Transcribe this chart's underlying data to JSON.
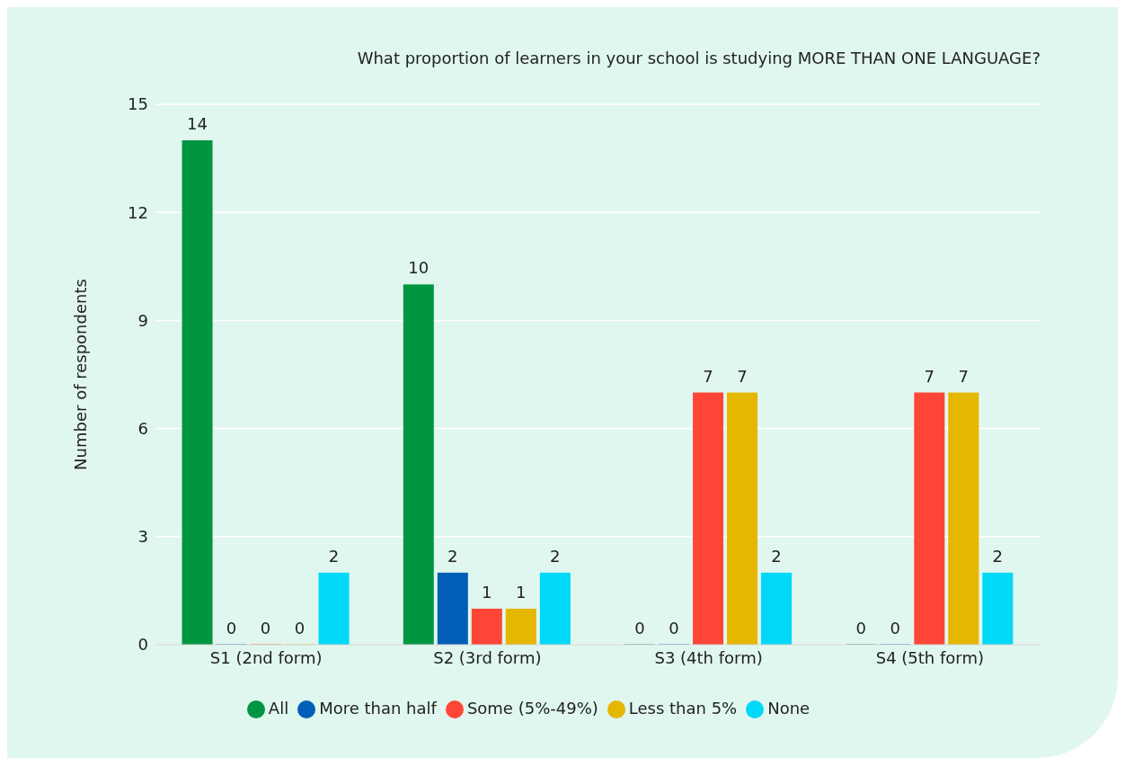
{
  "chart_data": {
    "type": "bar",
    "title": "What proportion of learners in your school is studying MORE THAN ONE LANGUAGE?",
    "ylabel": "Number of respondents",
    "categories": [
      "S1 (2nd form)",
      "S2 (3rd form)",
      "S3 (4th form)",
      "S4 (5th form)"
    ],
    "series": [
      {
        "name": "All",
        "color": "#00963f",
        "values": [
          14,
          10,
          0,
          0
        ]
      },
      {
        "name": "More than half",
        "color": "#005eb8",
        "values": [
          0,
          2,
          0,
          0
        ]
      },
      {
        "name": "Some (5%-49%)",
        "color": "#ff4636",
        "values": [
          0,
          1,
          7,
          7
        ]
      },
      {
        "name": "Less than 5%",
        "color": "#e5b700",
        "values": [
          0,
          1,
          7,
          7
        ]
      },
      {
        "name": "None",
        "color": "#00d8f8",
        "values": [
          2,
          2,
          2,
          2
        ]
      }
    ],
    "ylim": [
      0,
      15
    ],
    "yticks": [
      0,
      3,
      6,
      9,
      12,
      15
    ],
    "grid": "y",
    "legend": "bottom",
    "data_labels": true
  }
}
